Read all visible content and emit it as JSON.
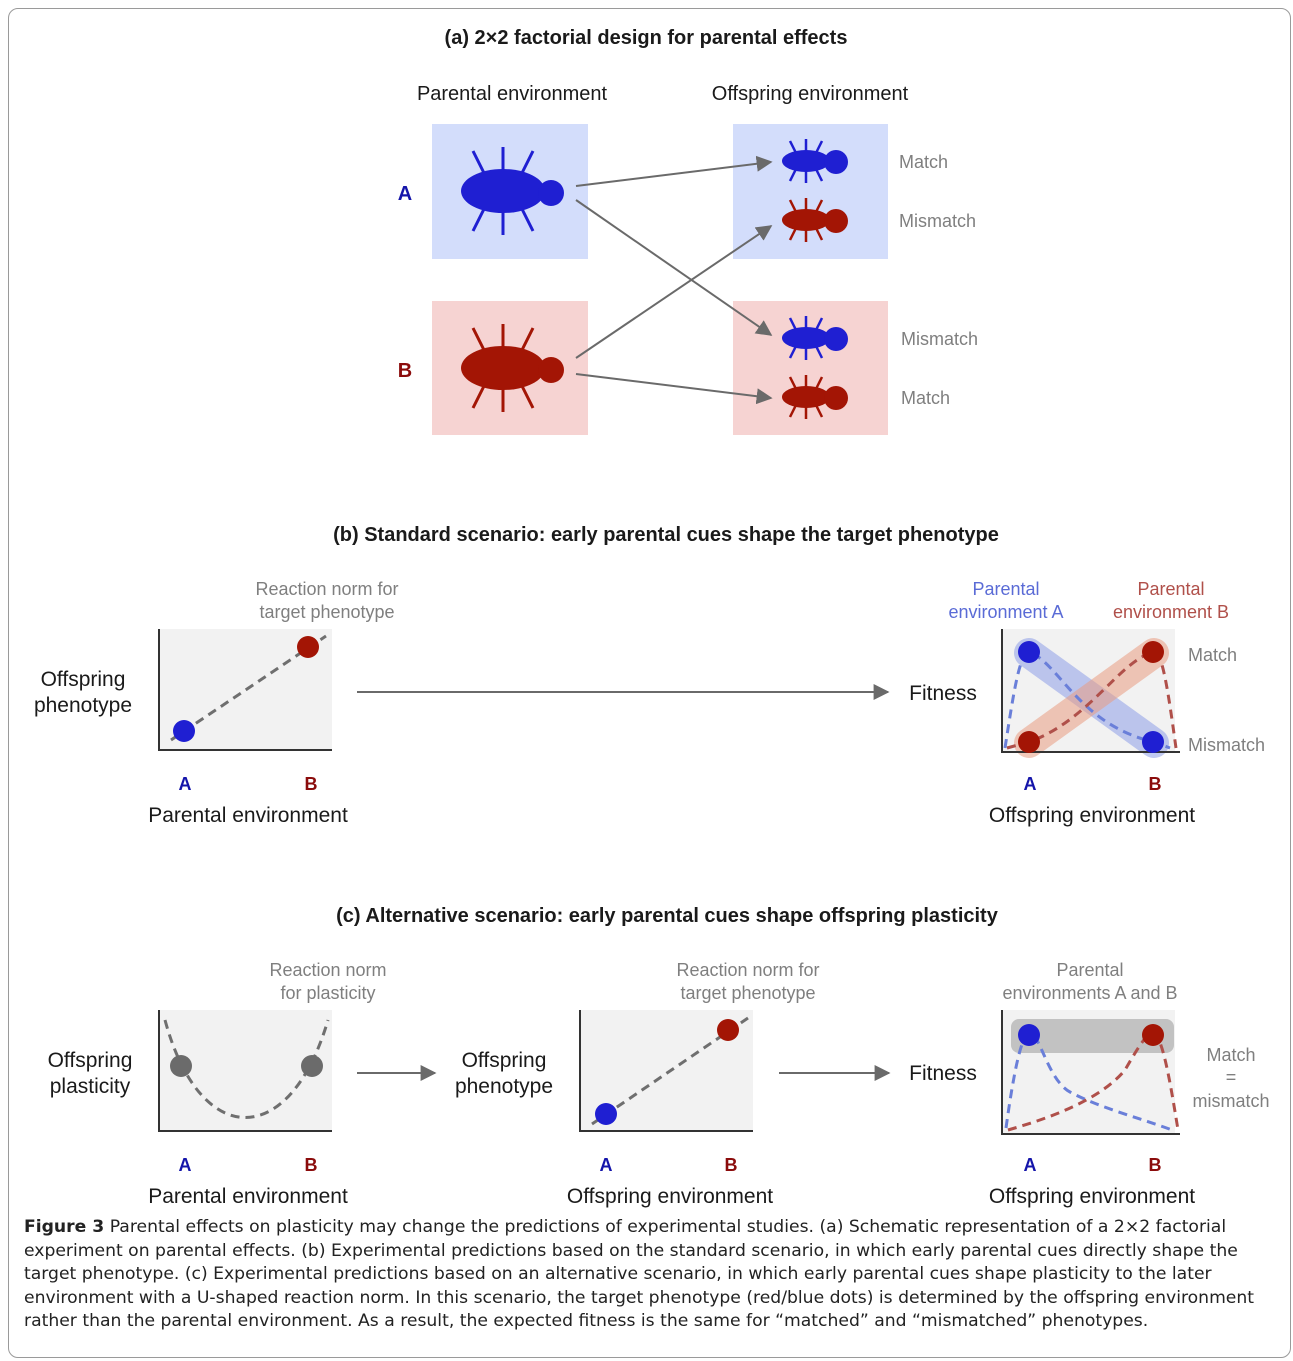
{
  "colors": {
    "blue": "#1f1fd2",
    "red": "#a31505",
    "blue_label": "#1515aa",
    "red_label": "#8b0c0c",
    "blue_box": "#d3ddfb",
    "red_box": "#f6d3d2",
    "gray_text": "#7f7f7f",
    "plot_bg": "#f2f2f2",
    "gray_dot": "#6b6b6b",
    "blue_band": "#8f9fe8",
    "red_band": "#e99d83"
  },
  "panel_a": {
    "title": "(a) 2×2 factorial design for parental effects",
    "parental_header": "Parental environment",
    "offspring_header": "Offspring environment",
    "env_a": "A",
    "env_b": "B",
    "outcomes": [
      "Match",
      "Mismatch",
      "Mismatch",
      "Match"
    ]
  },
  "panel_b": {
    "title": "(b) Standard scenario: early parental cues shape the target phenotype",
    "plot1": {
      "annotation": [
        "Reaction norm for",
        "target phenotype"
      ],
      "ylabel": [
        "Offspring",
        "phenotype"
      ],
      "xlabel": "Parental environment",
      "x_ticks": [
        "A",
        "B"
      ]
    },
    "plot2": {
      "legend_a": [
        "Parental",
        "environment A"
      ],
      "legend_b": [
        "Parental",
        "environment B"
      ],
      "ylabel": "Fitness",
      "xlabel": "Offspring environment",
      "x_ticks": [
        "A",
        "B"
      ],
      "right_labels": [
        "Match",
        "Mismatch"
      ]
    }
  },
  "panel_c": {
    "title": "(c) Alternative scenario: early parental cues shape offspring plasticity",
    "plot1": {
      "annotation": [
        "Reaction norm",
        "for plasticity"
      ],
      "ylabel": [
        "Offspring",
        "plasticity"
      ],
      "xlabel": "Parental environment",
      "x_ticks": [
        "A",
        "B"
      ]
    },
    "plot2": {
      "annotation": [
        "Reaction norm for",
        "target phenotype"
      ],
      "ylabel": [
        "Offspring",
        "phenotype"
      ],
      "xlabel": "Offspring environment",
      "x_ticks": [
        "A",
        "B"
      ]
    },
    "plot3": {
      "annotation": [
        "Parental",
        "environments A and B"
      ],
      "ylabel": "Fitness",
      "xlabel": "Offspring environment",
      "x_ticks": [
        "A",
        "B"
      ],
      "right_labels": [
        "Match",
        "=",
        "mismatch"
      ]
    }
  },
  "caption": {
    "label": "Figure 3",
    "text": " Parental effects on plasticity may change the predictions of experimental studies. (a) Schematic representation of a 2×2 factorial experiment on parental effects. (b) Experimental predictions based on the standard scenario, in which early parental cues directly shape the target phenotype. (c) Experimental predictions based on an alternative scenario, in which early parental cues shape plasticity to the later environment with a U-shaped reaction norm. In this scenario, the target phenotype (red/blue dots) is determined by the offspring environment rather than the parental environment. As a result, the expected fitness is the same for “matched” and “mismatched” phenotypes."
  }
}
